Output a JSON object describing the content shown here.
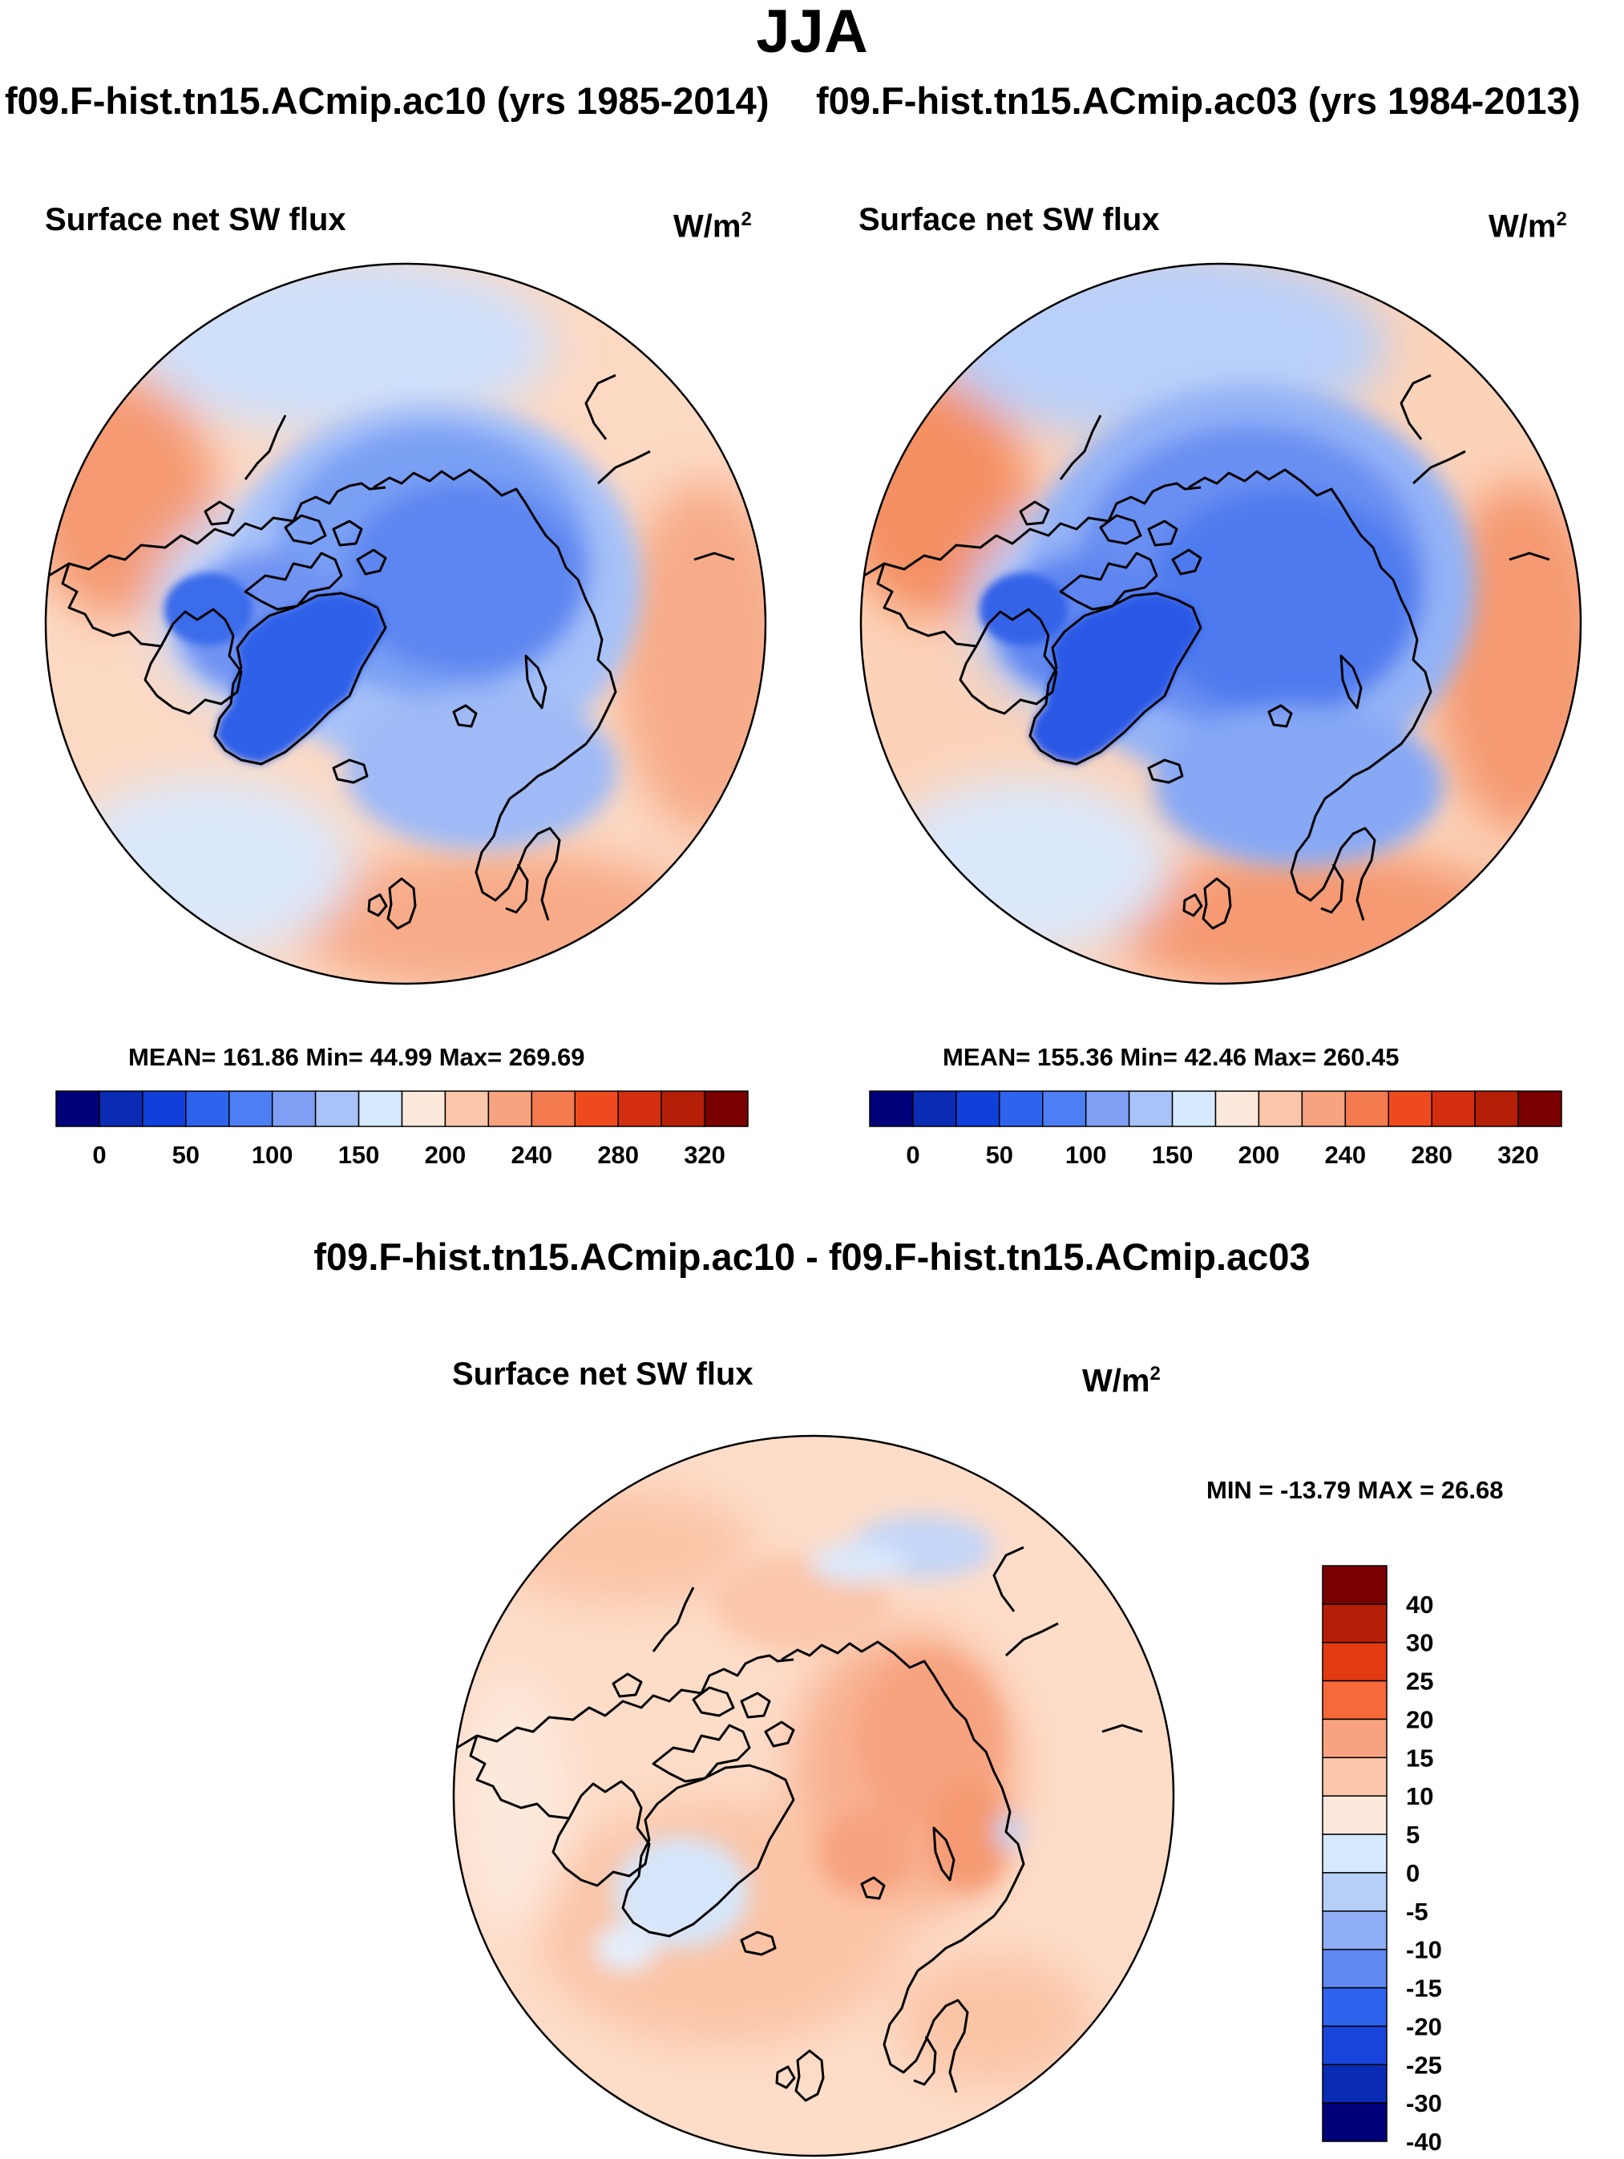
{
  "title": "JJA",
  "runs": {
    "left": "f09.F-hist.tn15.ACmip.ac10 (yrs 1985-2014)",
    "right": "f09.F-hist.tn15.ACmip.ac03 (yrs 1984-2013)"
  },
  "panels": {
    "left": {
      "variable": "Surface net SW flux",
      "units_base": "W/m",
      "units_exp": "2",
      "stats": "MEAN= 161.86  Min=  44.99  Max= 269.69"
    },
    "right": {
      "variable": "Surface net SW flux",
      "units_base": "W/m",
      "units_exp": "2",
      "stats": "MEAN= 155.36  Min=  42.46  Max= 260.45"
    },
    "diff": {
      "title": "f09.F-hist.tn15.ACmip.ac10 - f09.F-hist.tn15.ACmip.ac03",
      "variable": "Surface net SW flux",
      "units_base": "W/m",
      "units_exp": "2",
      "stats": "MIN = -13.79 MAX =  26.68"
    }
  },
  "colorbars": {
    "absolute": {
      "colors": [
        "#00007a",
        "#0a2bb4",
        "#1040dc",
        "#2e63ee",
        "#4d7ef3",
        "#7e9ff4",
        "#a9c3f8",
        "#d6e8fb",
        "#fde9dc",
        "#fbc6a9",
        "#f7a37f",
        "#f47a4f",
        "#ef4a1f",
        "#d42e10",
        "#b61f07",
        "#7a0000"
      ],
      "labels": [
        "0",
        "50",
        "100",
        "150",
        "200",
        "240",
        "280",
        "320"
      ]
    },
    "difference": {
      "colors": [
        "#7a0000",
        "#b61f07",
        "#e33a12",
        "#f7683a",
        "#f7a37f",
        "#fbc6a9",
        "#fde9dc",
        "#d6e8fb",
        "#b6cff9",
        "#8eaef5",
        "#5f88f0",
        "#2e63ee",
        "#1a45dc",
        "#0a2bb4",
        "#00007a"
      ],
      "labels": [
        "40",
        "30",
        "25",
        "20",
        "15",
        "10",
        "5",
        "0",
        "-5",
        "-10",
        "-15",
        "-20",
        "-25",
        "-30",
        "-40"
      ]
    }
  }
}
